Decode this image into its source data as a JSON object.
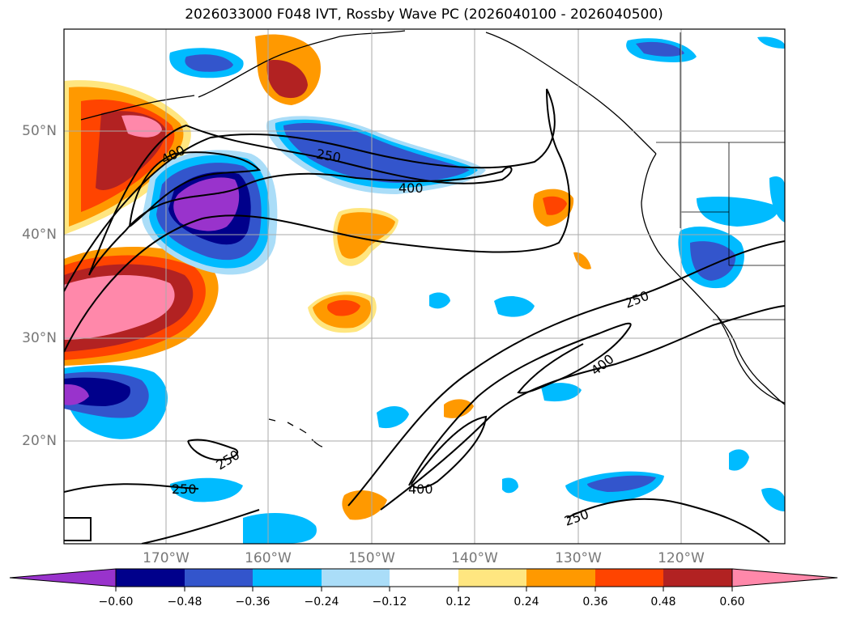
{
  "title": "2026033000 F048 IVT, Rossby Wave PC (2026040100 - 2026040500)",
  "lat_labels": [
    "50°N",
    "40°N",
    "30°N",
    "20°N"
  ],
  "lon_labels": [
    "170°W",
    "160°W",
    "150°W",
    "140°W",
    "130°W",
    "120°W"
  ],
  "contour_labels": [
    "400",
    "250",
    "400",
    "250",
    "400",
    "250",
    "250",
    "400",
    "250"
  ],
  "colorbar": {
    "ticks": [
      "−0.60",
      "−0.48",
      "−0.36",
      "−0.24",
      "−0.12",
      "0.12",
      "0.24",
      "0.36",
      "0.48",
      "0.60"
    ],
    "colors": [
      "#9933cc",
      "#00008b",
      "#3355cc",
      "#00bbff",
      "#aaddf8",
      "#ffffff",
      "#ffe680",
      "#ff9900",
      "#ff4400",
      "#b22222",
      "#ff88aa"
    ],
    "under_color": "#9933cc",
    "over_color": "#ff88aa"
  }
}
